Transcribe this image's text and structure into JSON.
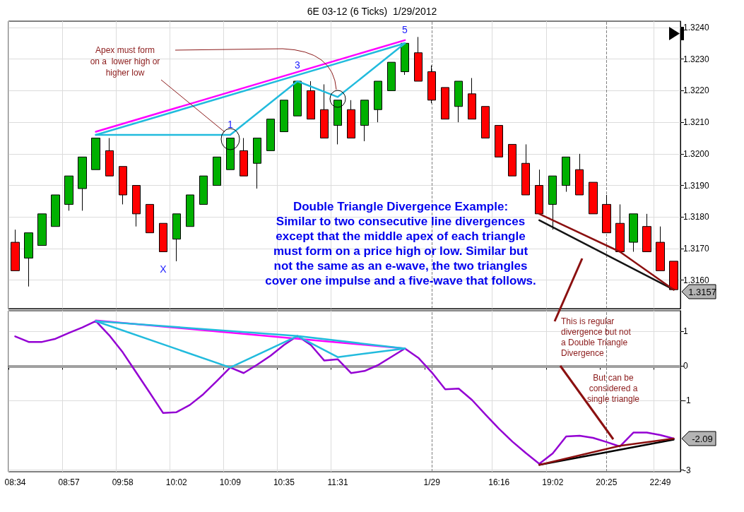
{
  "chart_data": [
    {
      "type": "candlestick",
      "title": "6E 03-12 (6 Ticks)  1/29/2012",
      "categories": [
        "08:34",
        null,
        null,
        null,
        "08:57",
        null,
        null,
        null,
        "09:58",
        null,
        null,
        null,
        "10:02",
        null,
        null,
        null,
        "10:09",
        null,
        null,
        null,
        "10:35",
        null,
        null,
        null,
        "11:31",
        null,
        null,
        null,
        null,
        null,
        null,
        "1/29",
        null,
        null,
        null,
        null,
        "16:16",
        null,
        null,
        null,
        "19:02",
        null,
        null,
        null,
        "20:25",
        null,
        null,
        null,
        "22:49",
        null
      ],
      "ohlc": [
        [
          1.3172,
          1.3176,
          1.3163,
          1.3163
        ],
        [
          1.3167,
          1.3175,
          1.3158,
          1.3175
        ],
        [
          1.3171,
          1.3181,
          1.3171,
          1.3181
        ],
        [
          1.3177,
          1.3187,
          1.3177,
          1.3187
        ],
        [
          1.3184,
          1.3193,
          1.3182,
          1.3193
        ],
        [
          1.3189,
          1.3199,
          1.3182,
          1.3199
        ],
        [
          1.3195,
          1.3205,
          1.3195,
          1.3205
        ],
        [
          1.3201,
          1.3205,
          1.3193,
          1.3193
        ],
        [
          1.3196,
          1.3196,
          1.3184,
          1.3187
        ],
        [
          1.319,
          1.319,
          1.3177,
          1.3181
        ],
        [
          1.3184,
          1.3184,
          1.3175,
          1.3175
        ],
        [
          1.3178,
          1.3178,
          1.3169,
          1.3169
        ],
        [
          1.3173,
          1.3181,
          1.3166,
          1.3181
        ],
        [
          1.3177,
          1.3187,
          1.3177,
          1.3187
        ],
        [
          1.3184,
          1.3193,
          1.3184,
          1.3193
        ],
        [
          1.319,
          1.3199,
          1.319,
          1.3199
        ],
        [
          1.3195,
          1.3205,
          1.3195,
          1.3205
        ],
        [
          1.3201,
          1.3205,
          1.3193,
          1.3193
        ],
        [
          1.3197,
          1.3205,
          1.3189,
          1.3205
        ],
        [
          1.3201,
          1.3211,
          1.3201,
          1.3211
        ],
        [
          1.3207,
          1.3217,
          1.3207,
          1.3217
        ],
        [
          1.3212,
          1.3223,
          1.3212,
          1.3223
        ],
        [
          1.322,
          1.3223,
          1.3211,
          1.3211
        ],
        [
          1.3214,
          1.3222,
          1.3205,
          1.3205
        ],
        [
          1.3209,
          1.3217,
          1.3203,
          1.3217
        ],
        [
          1.3214,
          1.3217,
          1.3205,
          1.3205
        ],
        [
          1.3209,
          1.3217,
          1.3204,
          1.3217
        ],
        [
          1.3214,
          1.3223,
          1.321,
          1.3223
        ],
        [
          1.322,
          1.3229,
          1.322,
          1.3229
        ],
        [
          1.3226,
          1.3235,
          1.3225,
          1.3235
        ],
        [
          1.3232,
          1.3237,
          1.3223,
          1.3223
        ],
        [
          1.3226,
          1.3228,
          1.3216,
          1.3217
        ],
        [
          1.3221,
          1.3221,
          1.3211,
          1.3211
        ],
        [
          1.3215,
          1.3223,
          1.321,
          1.3223
        ],
        [
          1.3219,
          1.3224,
          1.3211,
          1.3211
        ],
        [
          1.3215,
          1.3215,
          1.3205,
          1.3205
        ],
        [
          1.3209,
          1.3209,
          1.3199,
          1.3199
        ],
        [
          1.3203,
          1.3203,
          1.3193,
          1.3193
        ],
        [
          1.3197,
          1.3203,
          1.3187,
          1.3187
        ],
        [
          1.319,
          1.3195,
          1.3181,
          1.3181
        ],
        [
          1.3184,
          1.3193,
          1.3176,
          1.3193
        ],
        [
          1.319,
          1.3199,
          1.3188,
          1.3199
        ],
        [
          1.3195,
          1.32,
          1.3187,
          1.3187
        ],
        [
          1.3191,
          1.3191,
          1.3181,
          1.3181
        ],
        [
          1.3184,
          1.3187,
          1.3175,
          1.3175
        ],
        [
          1.3178,
          1.3184,
          1.3169,
          1.3169
        ],
        [
          1.3172,
          1.3181,
          1.3169,
          1.3181
        ],
        [
          1.3177,
          1.3181,
          1.3169,
          1.3169
        ],
        [
          1.3172,
          1.3177,
          1.3163,
          1.3163
        ],
        [
          1.3166,
          1.3166,
          1.3157,
          1.3157
        ]
      ],
      "colors": [
        "#ff0000",
        "#00b000",
        "#00b000",
        "#00b000",
        "#00b000",
        "#00b000",
        "#00b000",
        "#ff0000",
        "#ff0000",
        "#ff0000",
        "#ff0000",
        "#ff0000",
        "#00b000",
        "#00b000",
        "#00b000",
        "#00b000",
        "#00b000",
        "#ff0000",
        "#00b000",
        "#00b000",
        "#00b000",
        "#00b000",
        "#ff0000",
        "#ff0000",
        "#00b000",
        "#ff0000",
        "#00b000",
        "#00b000",
        "#00b000",
        "#00b000",
        "#ff0000",
        "#ff0000",
        "#ff0000",
        "#00b000",
        "#ff0000",
        "#ff0000",
        "#ff0000",
        "#ff0000",
        "#ff0000",
        "#ff0000",
        "#00b000",
        "#00b000",
        "#ff0000",
        "#ff0000",
        "#ff0000",
        "#ff0000",
        "#00b000",
        "#ff0000",
        "#ff0000",
        "#ff0000"
      ],
      "series": [
        {
          "type": "line",
          "color": "#ff00ff",
          "values": [
            null,
            null,
            null,
            null,
            null,
            null,
            1.3207,
            null,
            null,
            null,
            null,
            null,
            null,
            null,
            null,
            null,
            null,
            null,
            null,
            null,
            null,
            null,
            null,
            null,
            null,
            null,
            null,
            null,
            null,
            1.3236,
            null,
            null,
            null,
            null,
            null,
            null,
            null,
            null,
            null,
            null,
            null,
            null,
            null,
            null,
            null,
            null,
            null,
            null,
            null,
            null
          ]
        },
        {
          "type": "line",
          "color": "#22bbdd",
          "values": [
            null,
            null,
            null,
            null,
            null,
            null,
            1.3206,
            null,
            null,
            null,
            null,
            null,
            null,
            null,
            null,
            null,
            null,
            null,
            null,
            null,
            null,
            null,
            null,
            null,
            null,
            null,
            null,
            null,
            null,
            1.3235,
            null,
            null,
            null,
            null,
            null,
            null,
            null,
            null,
            null,
            null,
            null,
            null,
            null,
            null,
            null,
            null,
            null,
            null,
            null,
            null
          ]
        },
        {
          "type": "line",
          "color": "#22bbdd",
          "values": [
            null,
            null,
            null,
            null,
            null,
            null,
            1.3206,
            null,
            null,
            null,
            null,
            null,
            null,
            null,
            null,
            null,
            1.3206,
            null,
            null,
            null,
            null,
            1.3223,
            null,
            null,
            1.3218,
            null,
            null,
            null,
            null,
            1.3235,
            null,
            null,
            null,
            null,
            null,
            null,
            null,
            null,
            null,
            null,
            null,
            null,
            null,
            null,
            null,
            null,
            null,
            null,
            null,
            null
          ]
        },
        {
          "type": "line",
          "color": "#141414",
          "values": [
            null,
            null,
            null,
            null,
            null,
            null,
            null,
            null,
            null,
            null,
            null,
            null,
            null,
            null,
            null,
            null,
            null,
            null,
            null,
            null,
            null,
            null,
            null,
            null,
            null,
            null,
            null,
            null,
            null,
            null,
            null,
            null,
            null,
            null,
            null,
            null,
            null,
            null,
            null,
            1.3179,
            null,
            null,
            null,
            null,
            null,
            null,
            null,
            null,
            null,
            1.3157
          ]
        },
        {
          "type": "line",
          "color": "#8b1010",
          "values": [
            null,
            null,
            null,
            null,
            null,
            null,
            null,
            null,
            null,
            null,
            null,
            null,
            null,
            null,
            null,
            null,
            null,
            null,
            null,
            null,
            null,
            null,
            null,
            null,
            null,
            null,
            null,
            null,
            null,
            null,
            null,
            null,
            null,
            null,
            null,
            null,
            null,
            null,
            null,
            1.3181,
            null,
            null,
            null,
            null,
            null,
            1.3169,
            null,
            null,
            null,
            1.3157
          ]
        }
      ],
      "ylim": [
        1.3151,
        1.3242
      ],
      "yticks": [
        {
          "value": 1.316,
          "label": "1.3160"
        },
        {
          "value": 1.317,
          "label": "1.3170"
        },
        {
          "value": 1.318,
          "label": "1.3180"
        },
        {
          "value": 1.319,
          "label": "1.3190"
        },
        {
          "value": 1.32,
          "label": "1.3200"
        },
        {
          "value": 1.321,
          "label": "1.3210"
        },
        {
          "value": 1.322,
          "label": "1.3220"
        },
        {
          "value": 1.323,
          "label": "1.3230"
        },
        {
          "value": 1.324,
          "label": "1.3240"
        }
      ],
      "grid": true,
      "tick_labels": "y",
      "ref_lines": [
        {
          "axis": "x",
          "value": "1/29",
          "color": "#808080",
          "line_style": "dashed"
        },
        {
          "axis": "x",
          "value": "20:25",
          "color": "#808080",
          "line_style": "dashed"
        }
      ],
      "annotations": [
        "1",
        "3",
        "5",
        "X",
        "Apex must form\non a  lower high or\nhigher low",
        "Double Triangle Divergence Example:\nSimilar to two consecutive line divergences\nexcept that the middle apex of each triangle\nmust form on a price high or low. Similar but\nnot the same as an e-wave, the two triangles\ncover one impulse and a five-wave that follows.",
        "1.3157"
      ]
    },
    {
      "type": "line",
      "categories": [
        "08:34",
        null,
        null,
        null,
        "08:57",
        null,
        null,
        null,
        "09:58",
        null,
        null,
        null,
        "10:02",
        null,
        null,
        null,
        "10:09",
        null,
        null,
        null,
        "10:35",
        null,
        null,
        null,
        "11:31",
        null,
        null,
        null,
        null,
        null,
        null,
        "1/29",
        null,
        null,
        null,
        null,
        "16:16",
        null,
        null,
        null,
        "19:02",
        null,
        null,
        null,
        "20:25",
        null,
        null,
        null,
        "22:49",
        null
      ],
      "series": [
        {
          "color": "#9400d3",
          "values": [
            0.86,
            0.7,
            0.7,
            0.79,
            0.96,
            1.12,
            1.3,
            0.89,
            0.4,
            -0.18,
            -0.76,
            -1.35,
            -1.33,
            -1.12,
            -0.81,
            -0.43,
            -0.04,
            -0.2,
            0.04,
            0.3,
            0.61,
            0.87,
            0.61,
            0.16,
            0.2,
            -0.2,
            -0.14,
            0.03,
            0.27,
            0.51,
            0.24,
            -0.18,
            -0.67,
            -0.65,
            -0.98,
            -1.4,
            -1.81,
            -2.18,
            -2.51,
            -2.82,
            -2.52,
            -2.03,
            -2.01,
            -2.07,
            -2.19,
            -2.32,
            -1.92,
            -1.92,
            -1.99,
            -2.09
          ]
        },
        {
          "color": "#ff00ff",
          "values": [
            null,
            null,
            null,
            null,
            null,
            null,
            1.32,
            null,
            null,
            null,
            null,
            null,
            null,
            null,
            null,
            null,
            null,
            null,
            null,
            null,
            null,
            null,
            null,
            null,
            null,
            null,
            null,
            null,
            null,
            0.51,
            null,
            null,
            null,
            null,
            null,
            null,
            null,
            null,
            null,
            null,
            null,
            null,
            null,
            null,
            null,
            null,
            null,
            null,
            null,
            null
          ]
        },
        {
          "color": "#22bbdd",
          "values": [
            null,
            null,
            null,
            null,
            null,
            null,
            1.3,
            null,
            null,
            null,
            null,
            null,
            null,
            null,
            null,
            null,
            null,
            null,
            null,
            null,
            null,
            0.87,
            null,
            null,
            null,
            null,
            null,
            null,
            null,
            0.51,
            null,
            null,
            null,
            null,
            null,
            null,
            null,
            null,
            null,
            null,
            null,
            null,
            null,
            null,
            null,
            null,
            null,
            null,
            null,
            null
          ]
        },
        {
          "color": "#22bbdd",
          "values": [
            null,
            null,
            null,
            null,
            null,
            null,
            1.3,
            null,
            null,
            null,
            null,
            null,
            null,
            null,
            null,
            null,
            -0.04,
            null,
            null,
            null,
            null,
            0.87,
            null,
            null,
            0.26,
            null,
            null,
            null,
            null,
            0.51,
            null,
            null,
            null,
            null,
            null,
            null,
            null,
            null,
            null,
            null,
            null,
            null,
            null,
            null,
            null,
            null,
            null,
            null,
            null,
            null
          ]
        },
        {
          "color": "#000000",
          "values": [
            null,
            null,
            null,
            null,
            null,
            null,
            null,
            null,
            null,
            null,
            null,
            null,
            null,
            null,
            null,
            null,
            null,
            null,
            null,
            null,
            null,
            null,
            null,
            null,
            null,
            null,
            null,
            null,
            null,
            null,
            null,
            null,
            null,
            null,
            null,
            null,
            null,
            null,
            null,
            -2.85,
            null,
            null,
            null,
            null,
            null,
            null,
            null,
            null,
            null,
            -2.12
          ]
        },
        {
          "color": "#8b1010",
          "values": [
            null,
            null,
            null,
            null,
            null,
            null,
            null,
            null,
            null,
            null,
            null,
            null,
            null,
            null,
            null,
            null,
            null,
            null,
            null,
            null,
            null,
            null,
            null,
            null,
            null,
            null,
            null,
            null,
            null,
            null,
            null,
            null,
            null,
            null,
            null,
            null,
            null,
            null,
            null,
            -2.85,
            null,
            null,
            null,
            null,
            null,
            -2.3,
            null,
            null,
            null,
            -2.09
          ]
        }
      ],
      "ylim": [
        -3.05,
        1.6
      ],
      "yticks": [
        -3,
        -1,
        0,
        1
      ],
      "grid": true,
      "ref_lines": [
        {
          "axis": "y",
          "value": 0,
          "color": "#a0a0a0"
        },
        {
          "axis": "x",
          "value": "1/29",
          "color": "#808080",
          "line_style": "dashed"
        },
        {
          "axis": "x",
          "value": "20:25",
          "color": "#808080",
          "line_style": "dashed"
        }
      ],
      "annotations": [
        "This is regular\ndivergence but not\na Double Triangle\nDivergence",
        "But can be\nconsidered a\nsingle triangle",
        "-2.09"
      ]
    }
  ]
}
